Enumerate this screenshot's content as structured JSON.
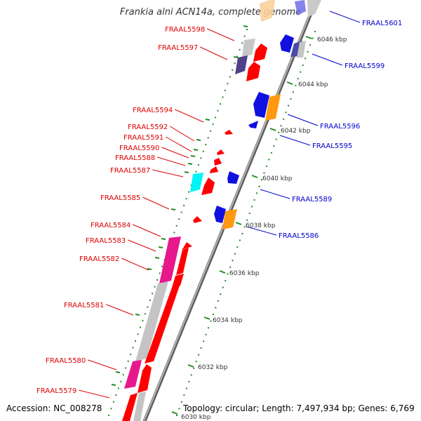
{
  "title": "Frankia alni ACN14a, complete genome",
  "accession_label": "Accession: NC_008278",
  "topology_label": "Topology: circular; Length: 7,497,934 bp; Genes: 6,769",
  "colors": {
    "backbone": "#8c8c8c",
    "forward_label": "#dd0000",
    "reverse_label": "#0000cc",
    "tick": "#228b22",
    "tick_label": "#333333"
  },
  "ticks": [
    {
      "label": "6046 kbp"
    },
    {
      "label": "6044 kbp"
    },
    {
      "label": "6042 kbp"
    },
    {
      "label": "6040 kbp"
    },
    {
      "label": "6038 kbp"
    },
    {
      "label": "6036 kbp"
    },
    {
      "label": "6034 kbp"
    },
    {
      "label": "6032 kbp"
    },
    {
      "label": "6030 kbp"
    }
  ],
  "forward_genes": [
    {
      "label": "FRAAL5598"
    },
    {
      "label": "FRAAL5597"
    },
    {
      "label": "FRAAL5594"
    },
    {
      "label": "FRAAL5592"
    },
    {
      "label": "FRAAL5591"
    },
    {
      "label": "FRAAL5590"
    },
    {
      "label": "FRAAL5588"
    },
    {
      "label": "FRAAL5587"
    },
    {
      "label": "FRAAL5585"
    },
    {
      "label": "FRAAL5584"
    },
    {
      "label": "FRAAL5583"
    },
    {
      "label": "FRAAL5582"
    },
    {
      "label": "FRAAL5581"
    },
    {
      "label": "FRAAL5580"
    },
    {
      "label": "FRAAL5579"
    }
  ],
  "reverse_genes": [
    {
      "label": "FRAAL5601"
    },
    {
      "label": "FRAAL5599"
    },
    {
      "label": "FRAAL5596"
    },
    {
      "label": "FRAAL5595"
    },
    {
      "label": "FRAAL5589"
    },
    {
      "label": "FRAAL5586"
    }
  ]
}
